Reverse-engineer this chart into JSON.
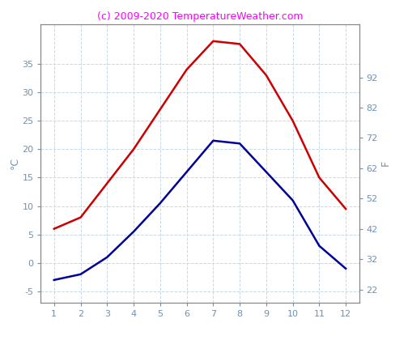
{
  "months": [
    1,
    2,
    3,
    4,
    5,
    6,
    7,
    8,
    9,
    10,
    11,
    12
  ],
  "high_c": [
    6.0,
    8.0,
    14.0,
    20.0,
    27.0,
    34.0,
    39.0,
    38.5,
    33.0,
    25.0,
    15.0,
    9.5
  ],
  "low_c": [
    -3.0,
    -2.0,
    1.0,
    5.5,
    10.5,
    16.0,
    21.5,
    21.0,
    16.0,
    11.0,
    3.0,
    -1.0
  ],
  "high_color": "#cc0000",
  "low_color": "#000099",
  "title": "(c) 2009-2020 TemperatureWeather.com",
  "title_color": "#ff00ff",
  "left_label": "°C",
  "right_label": "F",
  "ylim_c": [
    -7,
    42
  ],
  "yticks_c": [
    -5,
    0,
    5,
    10,
    15,
    20,
    25,
    30,
    35
  ],
  "yticks_f": [
    22,
    32,
    42,
    52,
    62,
    72,
    82,
    92
  ],
  "ylim_f_min": 17.6,
  "ylim_f_max": 109.6,
  "tick_color": "#7090b0",
  "grid_color": "#c8d8e8",
  "background_color": "#ffffff",
  "spine_color": "#888888",
  "title_fontsize": 9,
  "axis_label_fontsize": 9,
  "tick_fontsize": 8,
  "line_width": 1.8
}
